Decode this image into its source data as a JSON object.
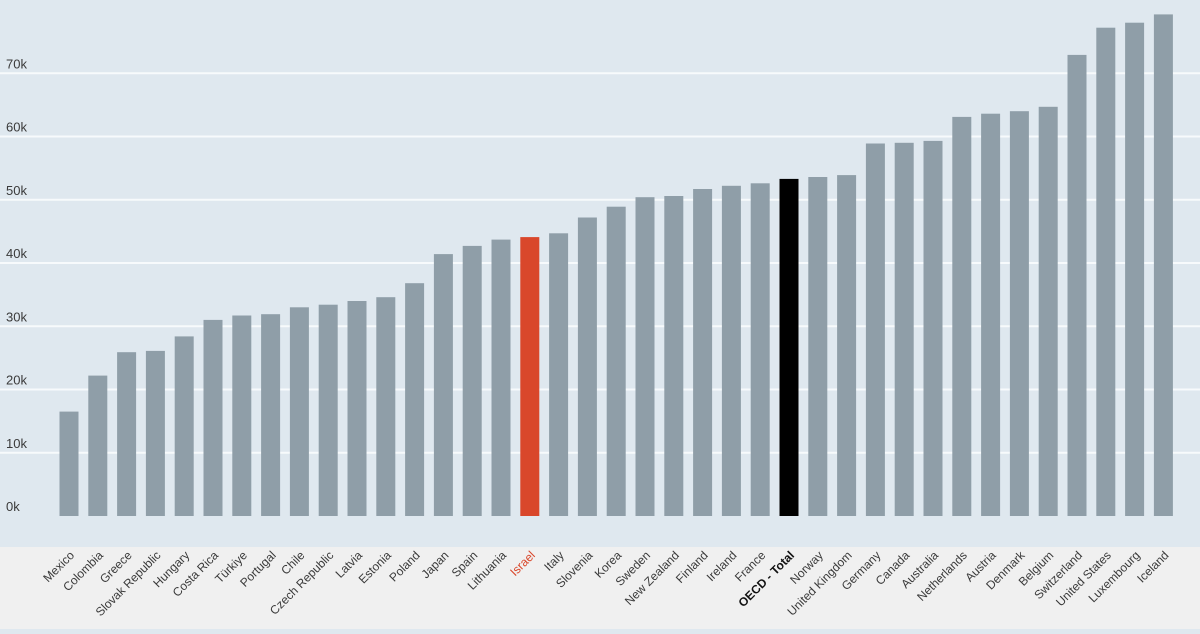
{
  "chart_data": {
    "type": "bar",
    "title": "",
    "xlabel": "",
    "ylabel": "",
    "ylim": [
      0,
      80000
    ],
    "y_ticks": [
      {
        "value": 0,
        "label": "0k"
      },
      {
        "value": 10000,
        "label": "10k"
      },
      {
        "value": 20000,
        "label": "20k"
      },
      {
        "value": 30000,
        "label": "30k"
      },
      {
        "value": 40000,
        "label": "40k"
      },
      {
        "value": 50000,
        "label": "50k"
      },
      {
        "value": 60000,
        "label": "60k"
      },
      {
        "value": 70000,
        "label": "70k"
      }
    ],
    "grid": true,
    "categories": [
      "Mexico",
      "Colombia",
      "Greece",
      "Slovak Republic",
      "Hungary",
      "Costa Rica",
      "Türkiye",
      "Portugal",
      "Chile",
      "Czech Republic",
      "Latvia",
      "Estonia",
      "Poland",
      "Japan",
      "Spain",
      "Lithuania",
      "Israel",
      "Italy",
      "Slovenia",
      "Korea",
      "Sweden",
      "New Zealand",
      "Finland",
      "Ireland",
      "France",
      "OECD - Total",
      "Norway",
      "United Kingdom",
      "Germany",
      "Canada",
      "Australia",
      "Netherlands",
      "Austria",
      "Denmark",
      "Belgium",
      "Switzerland",
      "United States",
      "Luxembourg",
      "Iceland"
    ],
    "values": [
      16500,
      22200,
      25900,
      26100,
      28400,
      31000,
      31700,
      31900,
      33000,
      33400,
      34000,
      34600,
      36800,
      41400,
      42700,
      43700,
      44100,
      44700,
      47200,
      48900,
      50400,
      50600,
      51700,
      52200,
      52600,
      53300,
      53600,
      53900,
      58900,
      59000,
      59300,
      63100,
      63600,
      64000,
      64700,
      72900,
      77200,
      78000,
      79300
    ],
    "highlights": {
      "Israel": "#d9472b",
      "OECD - Total": "#000000"
    },
    "colors": {
      "bar": "#8f9ea8",
      "background": "#dfe8ef",
      "label_band": "#f0f0f0",
      "grid": "#f7fafc",
      "tick_text": "#3a3a3a",
      "category_text": "#3a3a3a"
    }
  }
}
